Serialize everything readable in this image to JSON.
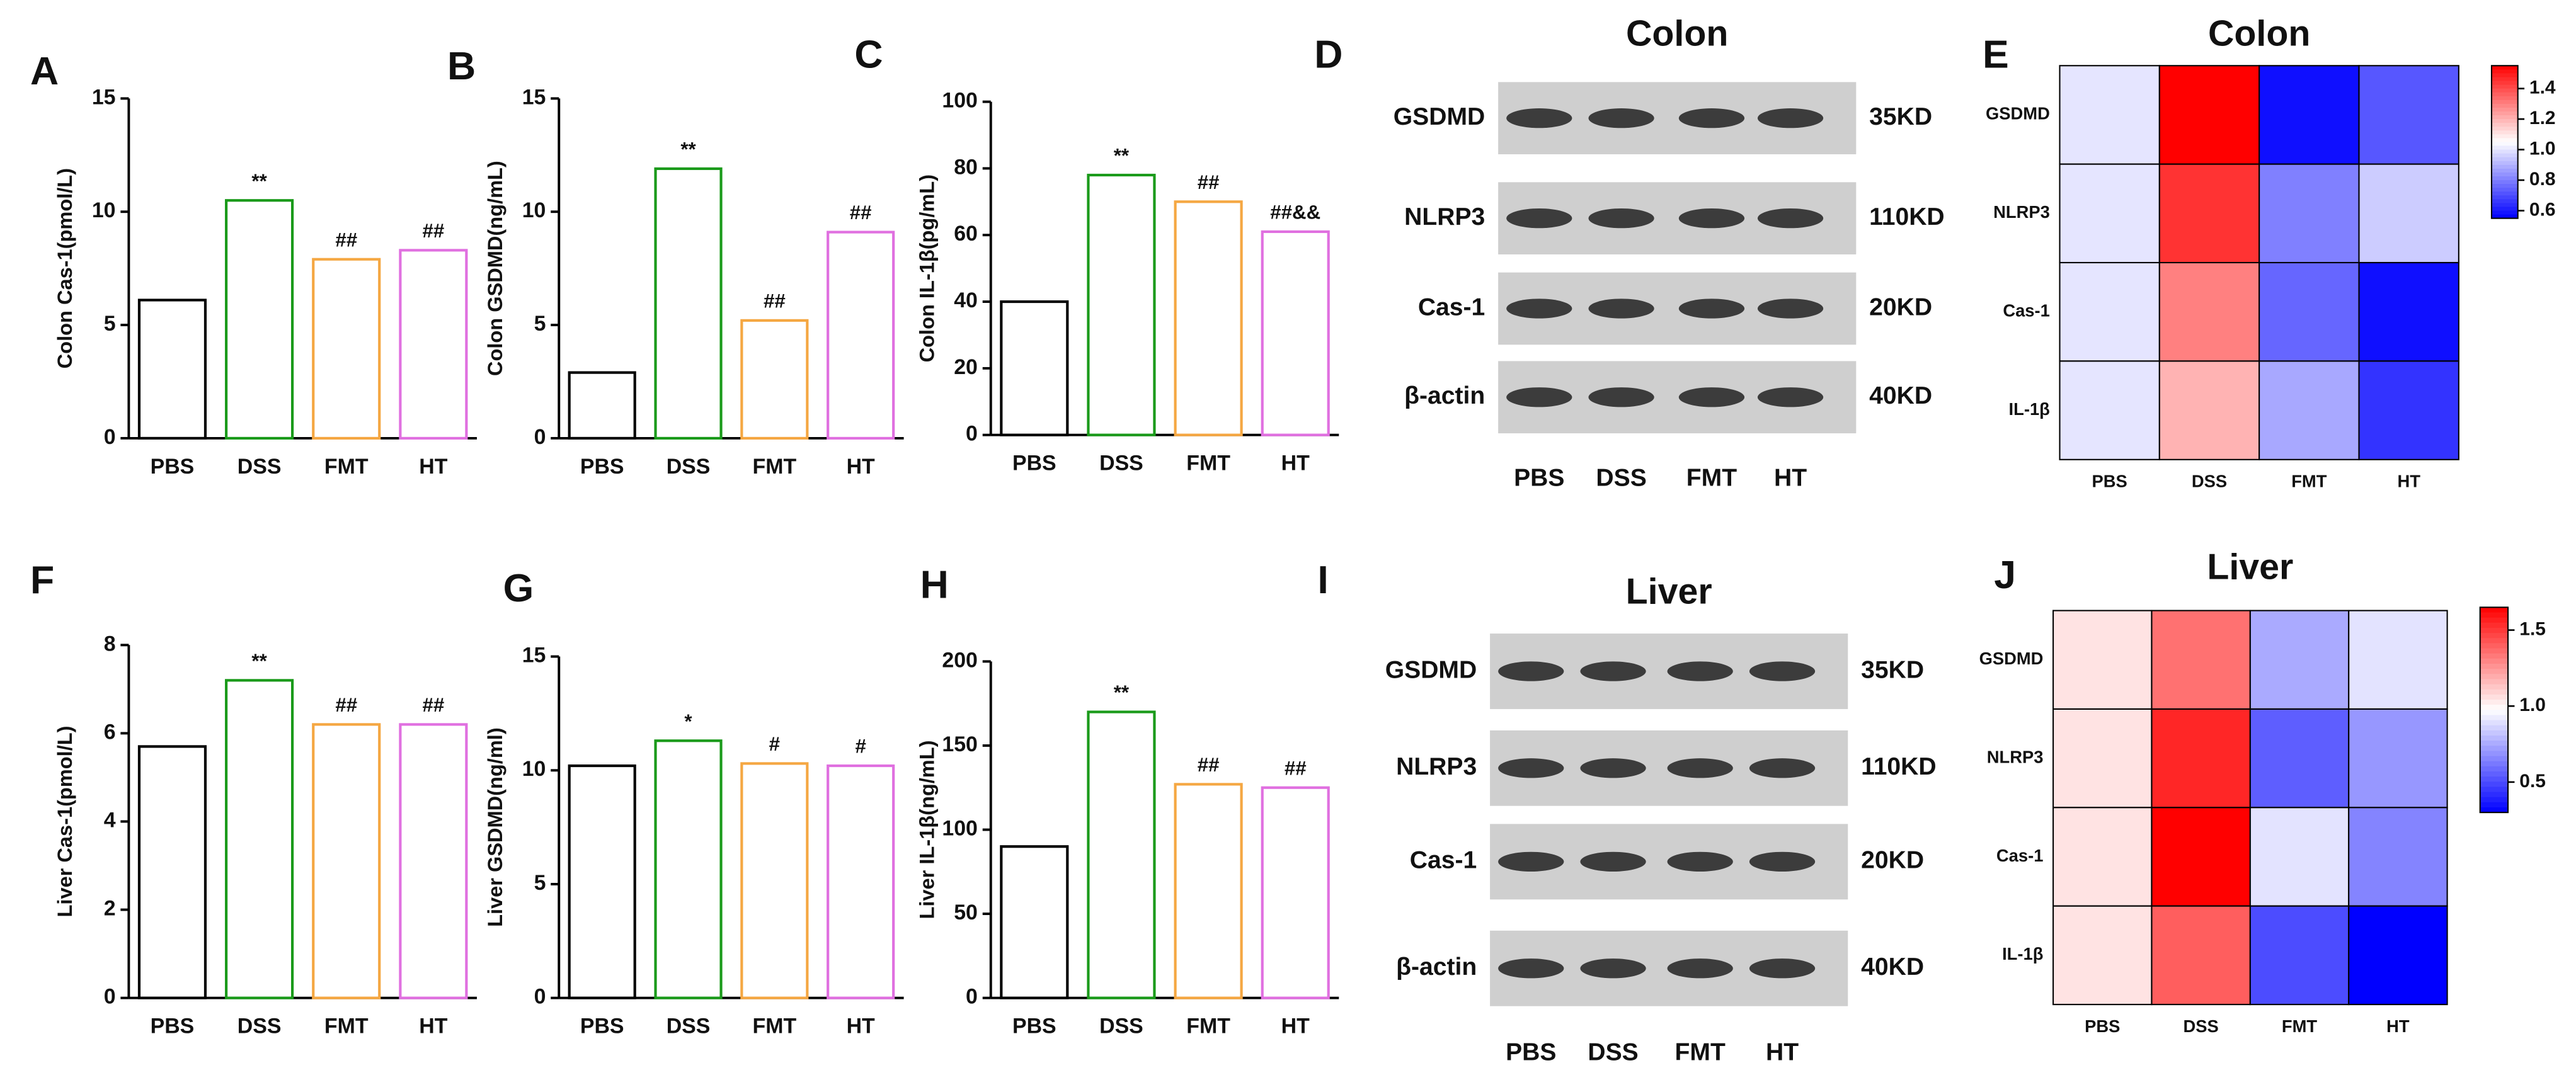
{
  "chart_data": [
    {
      "type": "bar",
      "panel": "A",
      "ylabel": "Colon Cas-1(pmol/L)",
      "categories": [
        "PBS",
        "DSS",
        "FMT",
        "HT"
      ],
      "values": [
        6.1,
        10.5,
        7.9,
        8.3
      ],
      "annotations": [
        null,
        "**",
        "##",
        "##"
      ],
      "colors": [
        "#000000",
        "#1a9a1a",
        "#f5a742",
        "#e070e0"
      ],
      "ylim": [
        0,
        15
      ],
      "yticks": [
        0,
        5,
        10,
        15
      ]
    },
    {
      "type": "bar",
      "panel": "B",
      "ylabel": "Colon GSDMD(ng/mL)",
      "categories": [
        "PBS",
        "DSS",
        "FMT",
        "HT"
      ],
      "values": [
        2.9,
        11.9,
        5.2,
        9.1
      ],
      "annotations": [
        null,
        "**",
        "##",
        "##"
      ],
      "colors": [
        "#000000",
        "#1a9a1a",
        "#f5a742",
        "#e070e0"
      ],
      "ylim": [
        0,
        15
      ],
      "yticks": [
        0,
        5,
        10,
        15
      ]
    },
    {
      "type": "bar",
      "panel": "C",
      "ylabel": "Colon IL-1β(pg/mL)",
      "categories": [
        "PBS",
        "DSS",
        "FMT",
        "HT"
      ],
      "values": [
        40,
        78,
        70,
        61
      ],
      "annotations": [
        null,
        "**",
        "##",
        "##&&"
      ],
      "colors": [
        "#000000",
        "#1a9a1a",
        "#f5a742",
        "#e070e0"
      ],
      "ylim": [
        0,
        100
      ],
      "yticks": [
        0,
        20,
        40,
        60,
        80,
        100
      ]
    },
    {
      "type": "blot",
      "panel": "D",
      "title": "Colon",
      "rows": [
        "GSDMD",
        "NLRP3",
        "Cas-1",
        "β-actin"
      ],
      "sizes": [
        "35KD",
        "110KD",
        "20KD",
        "40KD"
      ],
      "lanes": [
        "PBS",
        "DSS",
        "FMT",
        "HT"
      ]
    },
    {
      "type": "heatmap",
      "panel": "E",
      "title": "Colon",
      "rows": [
        "GSDMD",
        "NLRP3",
        "Cas-1",
        "IL-1β"
      ],
      "columns": [
        "PBS",
        "DSS",
        "FMT",
        "HT"
      ],
      "values": [
        [
          1.0,
          1.55,
          0.58,
          0.72
        ],
        [
          1.0,
          1.45,
          0.8,
          0.95
        ],
        [
          1.0,
          1.3,
          0.75,
          0.58
        ],
        [
          1.0,
          1.2,
          0.88,
          0.65
        ]
      ],
      "zlim": [
        0.55,
        1.55
      ],
      "zticks": [
        0.6,
        0.8,
        {
          "value": 1,
          "label": "1.0"
        },
        1.2,
        1.4
      ]
    },
    {
      "type": "bar",
      "panel": "F",
      "ylabel": "Liver Cas-1(pmol/L)",
      "categories": [
        "PBS",
        "DSS",
        "FMT",
        "HT"
      ],
      "values": [
        5.7,
        7.2,
        6.2,
        6.2
      ],
      "annotations": [
        null,
        "**",
        "##",
        "##"
      ],
      "colors": [
        "#000000",
        "#1a9a1a",
        "#f5a742",
        "#e070e0"
      ],
      "ylim": [
        0,
        8
      ],
      "yticks": [
        0,
        2,
        4,
        6,
        8
      ]
    },
    {
      "type": "bar",
      "panel": "G",
      "ylabel": "Liver GSDMD(ng/ml)",
      "categories": [
        "PBS",
        "DSS",
        "FMT",
        "HT"
      ],
      "values": [
        10.2,
        11.3,
        10.3,
        10.2
      ],
      "annotations": [
        null,
        "*",
        "#",
        "#"
      ],
      "colors": [
        "#000000",
        "#1a9a1a",
        "#f5a742",
        "#e070e0"
      ],
      "ylim": [
        0,
        15
      ],
      "yticks": [
        0,
        5,
        10,
        15
      ]
    },
    {
      "type": "bar",
      "panel": "H",
      "ylabel": "Liver IL-1β(ng/mL)",
      "categories": [
        "PBS",
        "DSS",
        "FMT",
        "HT"
      ],
      "values": [
        90,
        170,
        127,
        125
      ],
      "annotations": [
        null,
        "**",
        "##",
        "##"
      ],
      "colors": [
        "#000000",
        "#1a9a1a",
        "#f5a742",
        "#e070e0"
      ],
      "ylim": [
        0,
        200
      ],
      "yticks": [
        0,
        50,
        100,
        150,
        200
      ]
    },
    {
      "type": "blot",
      "panel": "I",
      "title": "Liver",
      "rows": [
        "GSDMD",
        "NLRP3",
        "Cas-1",
        "β-actin"
      ],
      "sizes": [
        "35KD",
        "110KD",
        "20KD",
        "40KD"
      ],
      "lanes": [
        "PBS",
        "DSS",
        "FMT",
        "HT"
      ]
    },
    {
      "type": "heatmap",
      "panel": "J",
      "title": "Liver",
      "rows": [
        "GSDMD",
        "NLRP3",
        "Cas-1",
        "IL-1β"
      ],
      "columns": [
        "PBS",
        "DSS",
        "FMT",
        "HT"
      ],
      "values": [
        [
          1.05,
          1.35,
          0.75,
          0.9
        ],
        [
          1.05,
          1.55,
          0.55,
          0.7
        ],
        [
          1.05,
          1.65,
          0.9,
          0.65
        ],
        [
          1.05,
          1.4,
          0.5,
          0.3
        ]
      ],
      "zlim": [
        0.3,
        1.65
      ],
      "zticks": [
        0.5,
        {
          "value": 1,
          "label": "1.0"
        },
        1.5
      ]
    }
  ]
}
